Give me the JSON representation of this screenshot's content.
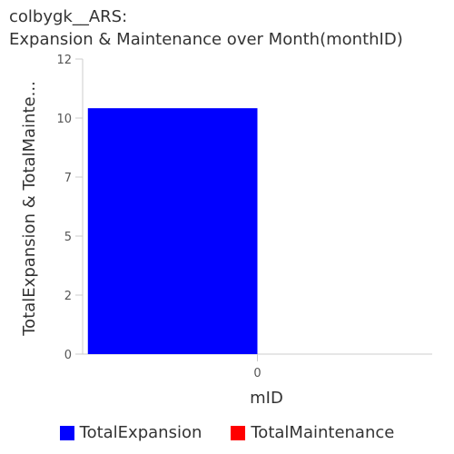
{
  "chart_data": {
    "type": "bar",
    "title_line1": "colbygk__ARS:",
    "title_line2": "Expansion & Maintenance over Month(monthID)",
    "xlabel": "mID",
    "ylabel": "TotalExpansion & TotalMainte...",
    "categories": [
      "0"
    ],
    "series": [
      {
        "name": "TotalExpansion",
        "values": [
          10
        ],
        "color": "#0000ff"
      },
      {
        "name": "TotalMaintenance",
        "values": [
          0
        ],
        "color": "#ff0000"
      }
    ],
    "ylim": [
      0,
      12
    ],
    "yticks": [
      {
        "value": 0,
        "label": "0"
      },
      {
        "value": 2.4,
        "label": "2"
      },
      {
        "value": 4.8,
        "label": "5"
      },
      {
        "value": 7.2,
        "label": "7"
      },
      {
        "value": 9.6,
        "label": "10"
      },
      {
        "value": 12,
        "label": "12"
      }
    ],
    "grid": false,
    "legend_position": "bottom"
  }
}
